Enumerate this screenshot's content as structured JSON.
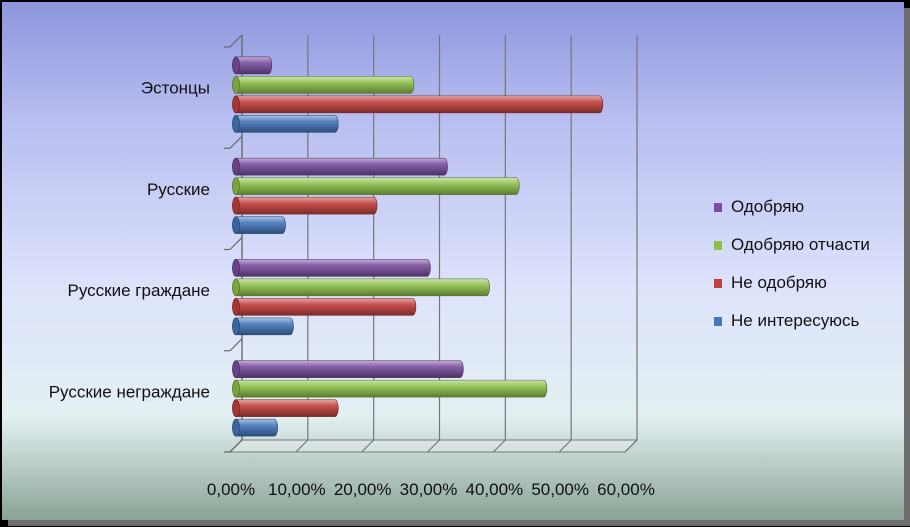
{
  "chart_data": {
    "type": "bar",
    "orientation": "horizontal",
    "style": "3d-cylinder",
    "categories": [
      "Эстонцы",
      "Русские",
      "Русские граждане",
      "Русские неграждане"
    ],
    "series": [
      {
        "name": "Одобряю",
        "color": "#7a4d9e",
        "values": [
          4.9,
          31.6,
          29.0,
          34.0
        ]
      },
      {
        "name": "Одобряю отчасти",
        "color": "#8dc04a",
        "values": [
          26.5,
          42.5,
          38.0,
          46.7
        ]
      },
      {
        "name": "Не одобряю",
        "color": "#c2403d",
        "values": [
          55.2,
          20.9,
          26.8,
          15.0
        ]
      },
      {
        "name": "Не интересуюсь",
        "color": "#4477bb",
        "values": [
          15.0,
          7.0,
          8.2,
          5.8
        ]
      }
    ],
    "x_ticks": [
      "0,00%",
      "10,00%",
      "20,00%",
      "30,00%",
      "40,00%",
      "50,00%",
      "60,00%"
    ],
    "xlim": [
      0,
      60
    ],
    "grid": true,
    "legend_position": "right",
    "legend_order": [
      "Одобряю",
      "Одобряю отчасти",
      "Не одобряю",
      "Не интересуюсь"
    ]
  }
}
